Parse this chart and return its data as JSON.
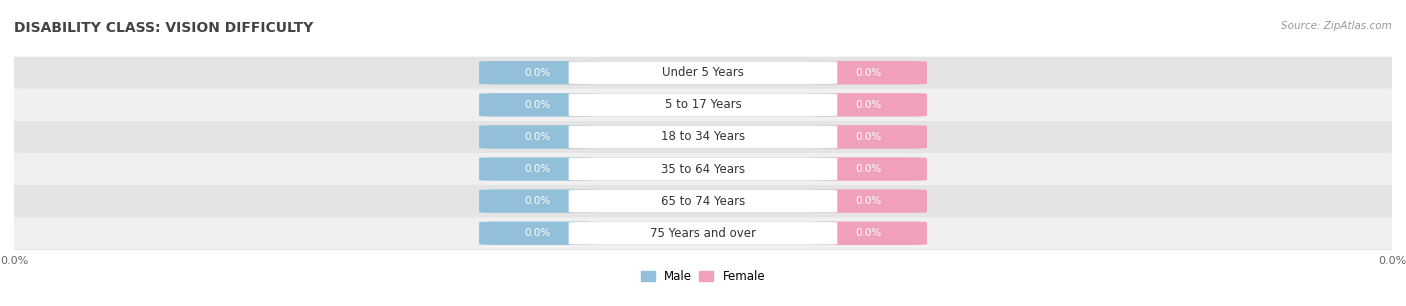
{
  "title": "DISABILITY CLASS: VISION DIFFICULTY",
  "source_text": "Source: ZipAtlas.com",
  "categories": [
    "Under 5 Years",
    "5 to 17 Years",
    "18 to 34 Years",
    "35 to 64 Years",
    "65 to 74 Years",
    "75 Years and over"
  ],
  "male_values": [
    0.0,
    0.0,
    0.0,
    0.0,
    0.0,
    0.0
  ],
  "female_values": [
    0.0,
    0.0,
    0.0,
    0.0,
    0.0,
    0.0
  ],
  "male_color": "#92C0DA",
  "female_color": "#F0A0B8",
  "row_bg_color_light": "#F0F0F0",
  "row_bg_color_dark": "#E4E4E4",
  "category_text_color": "#333333",
  "title_color": "#444444",
  "source_color": "#999999",
  "bar_height": 0.68,
  "title_fontsize": 10,
  "label_fontsize": 7.5,
  "category_fontsize": 8.5,
  "legend_fontsize": 8.5,
  "axis_label_fontsize": 8
}
